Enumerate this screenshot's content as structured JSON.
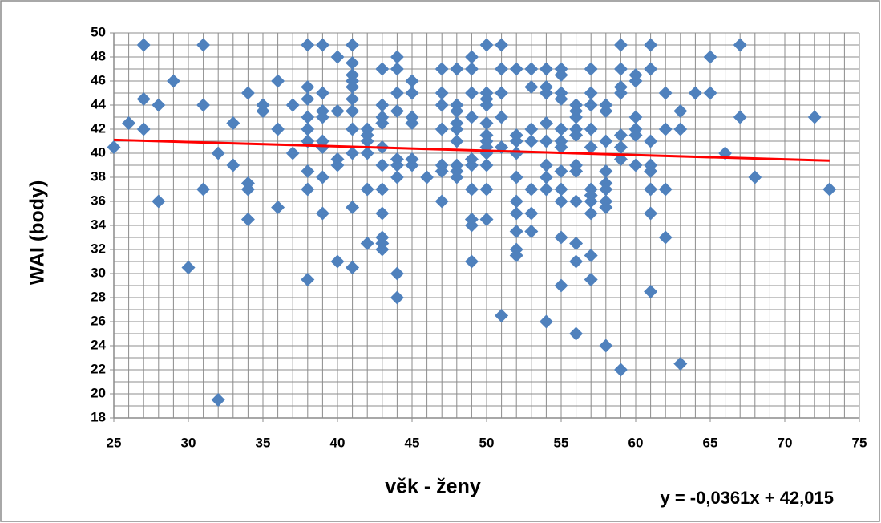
{
  "chart_data": {
    "type": "scatter",
    "x_label": "věk - ženy",
    "y_label": "WAI (body)",
    "color": "#4f81bd",
    "grid": true,
    "minor_grid_step": [
      1,
      1
    ],
    "xlim": [
      25,
      75
    ],
    "ylim": [
      18,
      50
    ],
    "xticks": [
      25,
      30,
      35,
      40,
      45,
      50,
      55,
      60,
      65,
      70,
      75
    ],
    "yticks": [
      18,
      20,
      22,
      24,
      26,
      28,
      30,
      32,
      34,
      36,
      38,
      40,
      42,
      44,
      46,
      48,
      50
    ],
    "x": [
      25,
      26,
      27,
      27,
      27,
      28,
      28,
      29,
      30,
      31,
      31,
      31,
      32,
      32,
      33,
      33,
      34,
      34,
      34,
      34,
      35,
      35,
      36,
      36,
      36,
      37,
      37,
      38,
      38,
      38,
      38,
      38,
      38,
      38,
      38,
      38,
      39,
      39,
      39,
      39,
      39,
      39,
      39,
      39,
      40,
      40,
      40,
      40,
      40,
      41,
      41,
      41,
      41,
      41,
      41,
      41,
      41,
      41,
      41,
      41,
      42,
      42,
      42,
      42,
      42,
      42,
      43,
      43,
      43,
      43,
      43,
      43,
      43,
      43,
      43,
      43,
      43,
      44,
      44,
      44,
      44,
      44,
      44,
      44,
      44,
      44,
      45,
      45,
      45,
      45,
      45,
      45,
      46,
      47,
      47,
      47,
      47,
      47,
      47,
      47,
      48,
      48,
      48,
      48,
      48,
      48,
      48,
      48,
      48,
      49,
      49,
      49,
      49,
      49,
      49,
      49,
      49,
      49,
      49,
      50,
      50,
      50,
      50,
      50,
      50,
      50,
      50,
      50,
      50,
      50,
      50,
      51,
      51,
      51,
      51,
      51,
      51,
      52,
      52,
      52,
      52,
      52,
      52,
      52,
      52,
      52,
      52,
      53,
      53,
      53,
      53,
      53,
      53,
      53,
      54,
      54,
      54,
      54,
      54,
      54,
      54,
      54,
      54,
      55,
      55,
      55,
      55,
      55,
      55,
      55,
      55,
      55,
      55,
      55,
      55,
      56,
      56,
      56,
      56,
      56,
      56,
      56,
      56,
      56,
      56,
      56,
      57,
      57,
      57,
      57,
      57,
      57,
      57,
      57,
      57,
      57,
      57,
      58,
      58,
      58,
      58,
      58,
      58,
      58,
      58,
      58,
      59,
      59,
      59,
      59,
      59,
      59,
      59,
      59,
      60,
      60,
      60,
      60,
      60,
      60,
      61,
      61,
      61,
      61,
      61,
      61,
      61,
      61,
      62,
      62,
      62,
      62,
      63,
      63,
      63,
      64,
      65,
      65,
      66,
      67,
      67,
      68,
      72,
      73
    ],
    "values": [
      40.5,
      42.5,
      49,
      44.5,
      42,
      44,
      36,
      46,
      30.5,
      49,
      44,
      37,
      40,
      19.5,
      42.5,
      39,
      45,
      37.5,
      37,
      34.5,
      44,
      43.5,
      46,
      42,
      35.5,
      44,
      40,
      49,
      45.5,
      44.5,
      43,
      42,
      41,
      38.5,
      37,
      29.5,
      49,
      45,
      43.5,
      43,
      41,
      40.5,
      38,
      35,
      48,
      43.5,
      39.5,
      39,
      31,
      49,
      47.5,
      46.5,
      46,
      45.5,
      44.5,
      43.5,
      42,
      40,
      35.5,
      30.5,
      42,
      41.5,
      41,
      40,
      37,
      32.5,
      47,
      44,
      43,
      42.5,
      40.5,
      39,
      37,
      35,
      33,
      32.5,
      32,
      48,
      47,
      45,
      43.5,
      39.5,
      39,
      38,
      30,
      28,
      46,
      45,
      43,
      42.5,
      39.5,
      39,
      38,
      47,
      45,
      44,
      42,
      39,
      38.5,
      36,
      47,
      44,
      43.5,
      42.5,
      42,
      41,
      39,
      38.5,
      38,
      48,
      47,
      45,
      43,
      39.5,
      39,
      37,
      34.5,
      34,
      31,
      49,
      45,
      44.5,
      44,
      42.5,
      41.5,
      41,
      40.5,
      40,
      39,
      37,
      34.5,
      49,
      47,
      45,
      43,
      40.5,
      26.5,
      47,
      41.5,
      41,
      40,
      38,
      36,
      35,
      33.5,
      32,
      31.5,
      47,
      45.5,
      42,
      41,
      37,
      35,
      33.5,
      47,
      45.5,
      45,
      42.5,
      41,
      39,
      38,
      37,
      26,
      47,
      46.5,
      45,
      44.5,
      42,
      41,
      40.5,
      38.5,
      37,
      36,
      33,
      29,
      44,
      43.5,
      43,
      42,
      41.5,
      39,
      38.5,
      36,
      32.5,
      31,
      25,
      47,
      45,
      44,
      42,
      40.5,
      37,
      36.5,
      36,
      35,
      31.5,
      29.5,
      44,
      43.5,
      41,
      38.5,
      37.5,
      37,
      36,
      35.5,
      24,
      49,
      47,
      45.5,
      45,
      41.5,
      40.5,
      39.5,
      22,
      46.5,
      46,
      43,
      42,
      41.5,
      39,
      49,
      47,
      41,
      39,
      38.5,
      37,
      35,
      28.5,
      45,
      42,
      37,
      33,
      43.5,
      42,
      22.5,
      45,
      48,
      45,
      40,
      49,
      43,
      38,
      43,
      37
    ],
    "trendline": {
      "slope": -0.0361,
      "intercept": 42.015,
      "x": [
        25,
        73
      ],
      "color": "#ff0000",
      "label": "y = -0,0361x + 42,015"
    }
  }
}
